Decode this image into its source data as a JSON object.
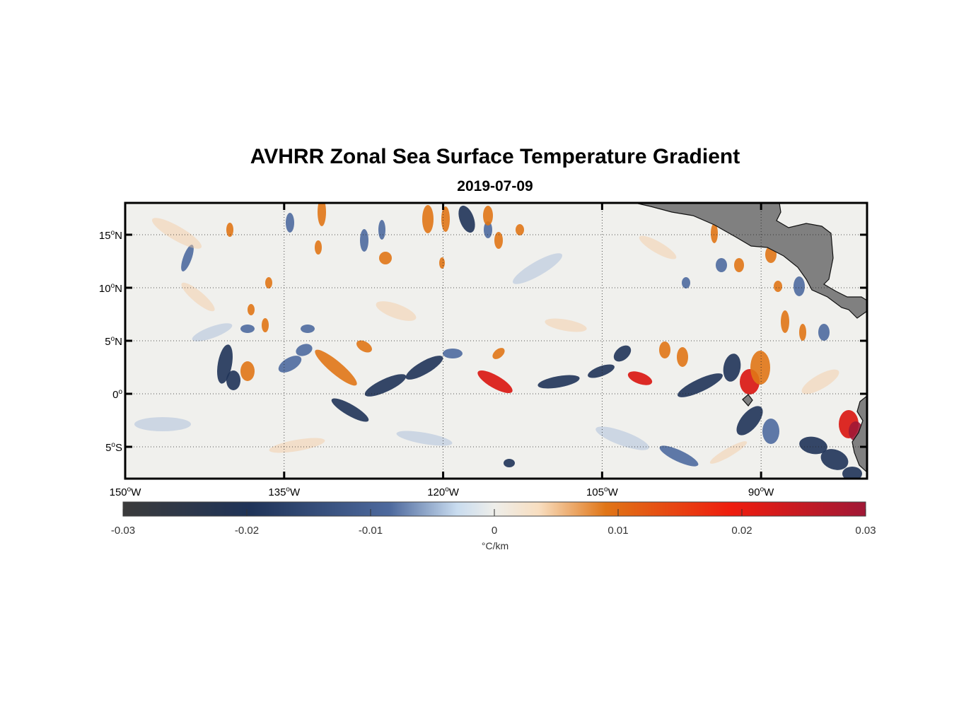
{
  "title": "AVHRR Zonal Sea Surface Temperature Gradient",
  "subtitle": "2019-07-09",
  "lon_ticks": [
    {
      "deg": "150",
      "hem": "W",
      "lon": -150
    },
    {
      "deg": "135",
      "hem": "W",
      "lon": -135
    },
    {
      "deg": "120",
      "hem": "W",
      "lon": -120
    },
    {
      "deg": "105",
      "hem": "W",
      "lon": -105
    },
    {
      "deg": "90",
      "hem": "W",
      "lon": -90
    }
  ],
  "lat_ticks": [
    {
      "deg": "15",
      "hem": "N",
      "lat": 15
    },
    {
      "deg": "10",
      "hem": "N",
      "lat": 10
    },
    {
      "deg": "5",
      "hem": "N",
      "lat": 5
    },
    {
      "deg": "0",
      "hem": "",
      "lat": 0
    },
    {
      "deg": "5",
      "hem": "S",
      "lat": -5
    }
  ],
  "map_extent": {
    "lon": [
      -150,
      -80
    ],
    "lat": [
      -8,
      18
    ]
  },
  "colorbar": {
    "ticks": [
      "-0.03",
      "-0.02",
      "-0.01",
      "0",
      "0.01",
      "0.02",
      "0.03"
    ],
    "range": [
      -0.03,
      0.03
    ],
    "units": "°C/km",
    "colors": [
      "#3b3b3b",
      "#1f3358",
      "#4e6a9e",
      "#c9dcef",
      "#eeeeea",
      "#f8dec0",
      "#e07516",
      "#ee1c0e",
      "#a01836"
    ]
  },
  "land_color": "#808080"
}
